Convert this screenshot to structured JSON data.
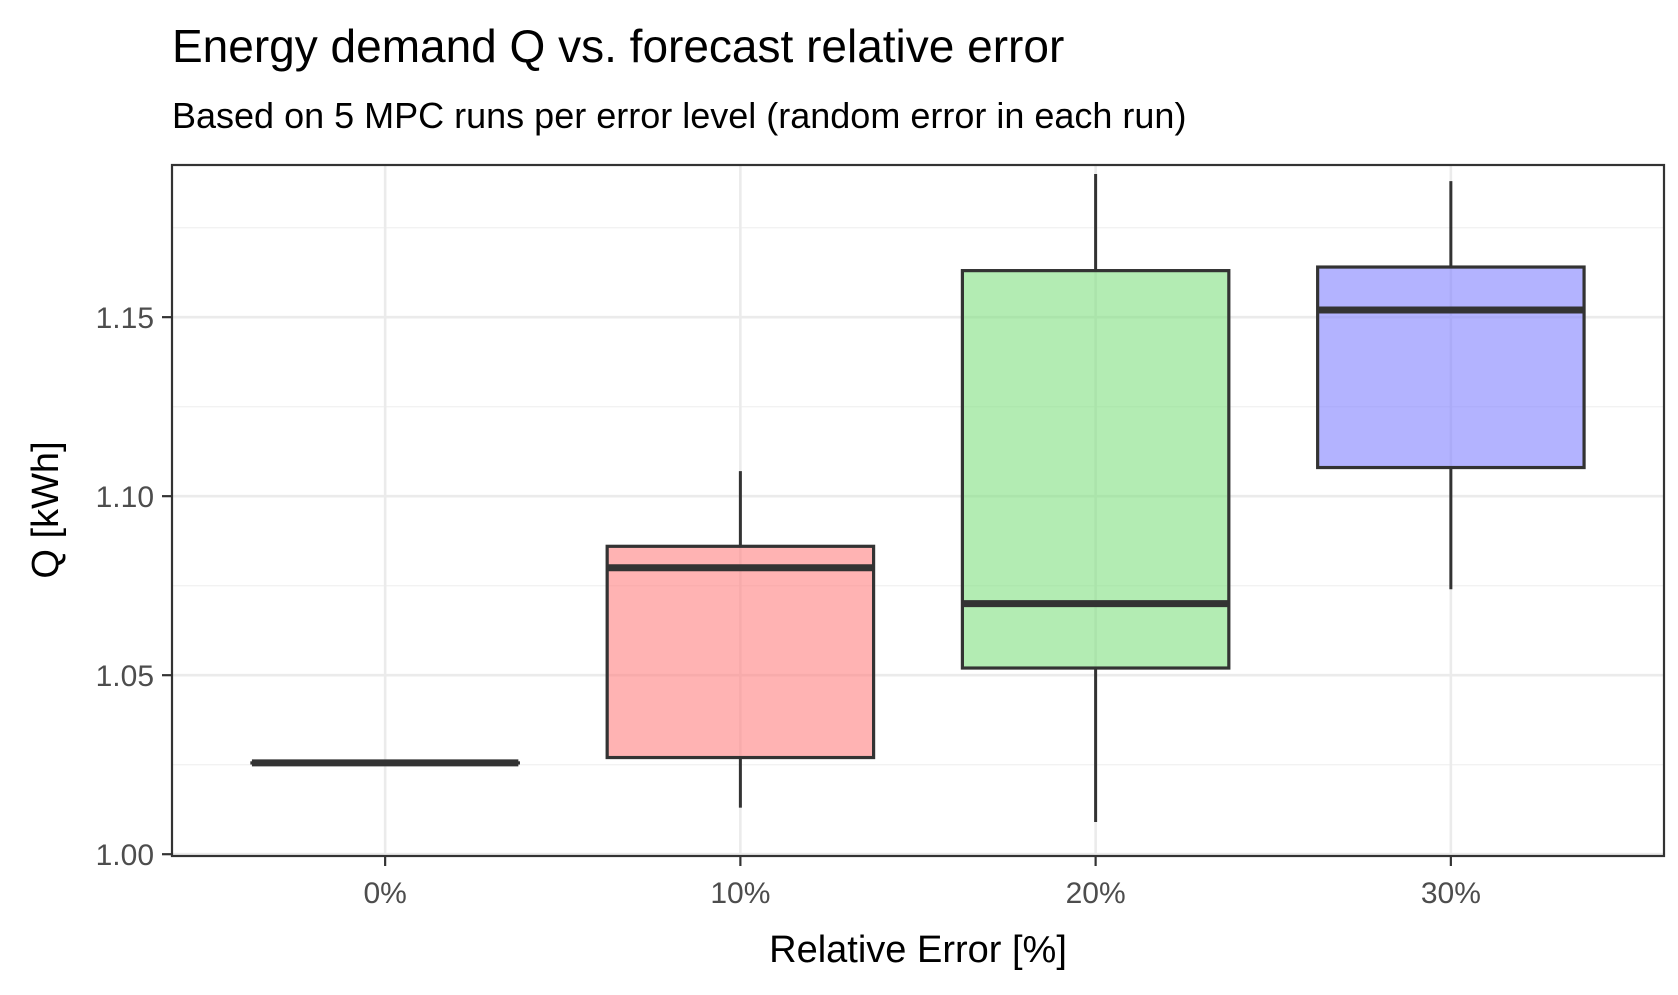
{
  "chart_data": {
    "type": "boxplot",
    "title": "Energy demand Q vs. forecast relative error",
    "subtitle": "Based on 5 MPC runs per error level (random error in each run)",
    "xlabel": "Relative Error [%]",
    "ylabel": "Q [kWh]",
    "categories": [
      "0%",
      "10%",
      "20%",
      "30%"
    ],
    "ylim": [
      0.9995,
      1.1925
    ],
    "yticks": [
      1.0,
      1.05,
      1.1,
      1.15
    ],
    "ytick_labels": [
      "1.00",
      "1.05",
      "1.10",
      "1.15"
    ],
    "grid": true,
    "legend": "none",
    "boxes": [
      {
        "category": "0%",
        "min": 1.0255,
        "q1": 1.0255,
        "median": 1.0255,
        "q3": 1.0255,
        "max": 1.0255,
        "fill": "#ff8080"
      },
      {
        "category": "10%",
        "min": 1.013,
        "q1": 1.027,
        "median": 1.08,
        "q3": 1.086,
        "max": 1.107,
        "fill": "#ff8080"
      },
      {
        "category": "20%",
        "min": 1.009,
        "q1": 1.052,
        "median": 1.07,
        "q3": 1.163,
        "max": 1.19,
        "fill": "#80e080"
      },
      {
        "category": "30%",
        "min": 1.074,
        "q1": 1.108,
        "median": 1.152,
        "q3": 1.164,
        "max": 1.188,
        "fill": "#8080ff"
      }
    ]
  }
}
